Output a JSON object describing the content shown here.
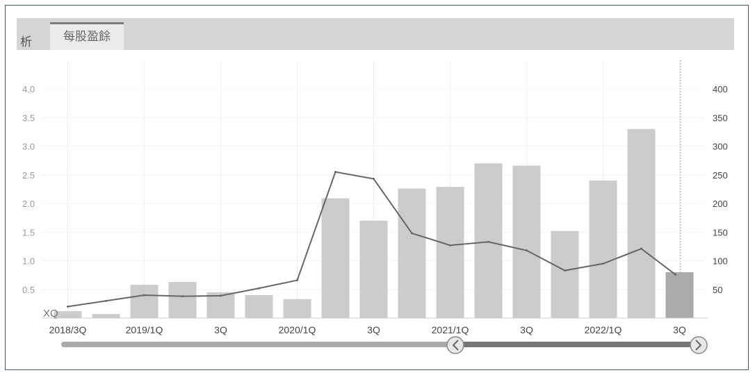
{
  "tabs": {
    "partial_label": "析",
    "active_label": "每股盈餘"
  },
  "colors": {
    "bar": "#cccccc",
    "bar_highlight": "#aaaaaa",
    "line": "#666666",
    "grid": "#eeeeee",
    "tick_text": "#9a9a9a",
    "xtick_text": "#444444"
  },
  "chart_data": {
    "type": "bar",
    "categories": [
      "2018/3Q",
      "",
      "2019/1Q",
      "",
      "3Q",
      "",
      "2020/1Q",
      "",
      "3Q",
      "",
      "2021/1Q",
      "",
      "3Q",
      "",
      "2022/1Q",
      "",
      "3Q"
    ],
    "left_axis": {
      "ticks": [
        "0.5",
        "1.0",
        "1.5",
        "2.0",
        "2.5",
        "3.0",
        "3.5",
        "4.0"
      ],
      "ylim": [
        0,
        4.5
      ]
    },
    "right_axis": {
      "ticks": [
        "50",
        "100",
        "150",
        "200",
        "250",
        "300",
        "350",
        "400"
      ],
      "ylim": [
        0,
        450
      ]
    },
    "series": [
      {
        "type": "bar",
        "axis": "left",
        "values": [
          0.12,
          0.07,
          0.58,
          0.63,
          0.45,
          0.4,
          0.33,
          2.09,
          1.7,
          2.26,
          2.29,
          2.7,
          2.66,
          1.52,
          2.4,
          3.3,
          0.8
        ],
        "highlight_index": 16
      },
      {
        "type": "line",
        "axis": "right",
        "values": [
          20,
          30,
          40,
          38,
          39,
          52,
          66,
          255,
          243,
          148,
          127,
          133,
          118,
          83,
          95,
          121,
          76
        ]
      }
    ],
    "annotations": [
      "XQ"
    ],
    "navigator": {
      "left_icon": "chevron-left-icon",
      "right_icon": "chevron-right-icon"
    }
  }
}
